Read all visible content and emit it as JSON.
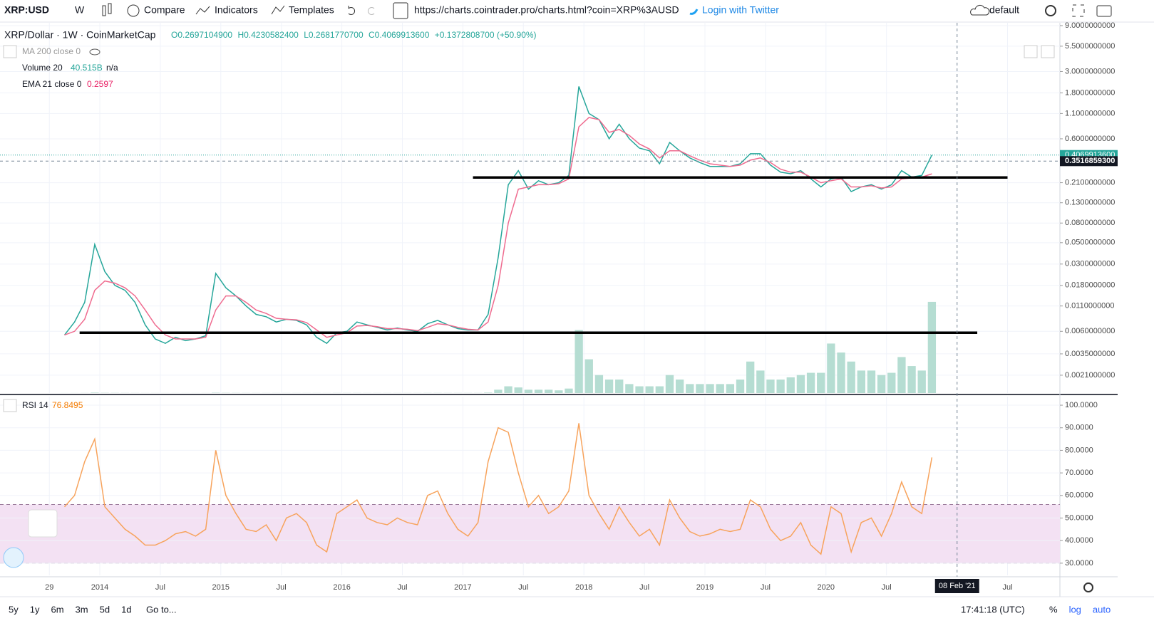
{
  "toolbar": {
    "symbol": "XRP:USD",
    "interval": "W",
    "compare": "Compare",
    "indicators": "Indicators",
    "templates": "Templates",
    "url": "https://charts.cointrader.pro/charts.html?coin=XRP%3AUSD",
    "login": "Login with Twitter",
    "layout": "default"
  },
  "legend": {
    "title": "XRP/Dollar · 1W · CoinMarketCap",
    "ohlc": [
      {
        "label": "O",
        "value": "0.2697104900"
      },
      {
        "label": "H",
        "value": "0.4230582400"
      },
      {
        "label": "L",
        "value": "0.2681770700"
      },
      {
        "label": "C",
        "value": "0.4069913600"
      }
    ],
    "change": "+0.1372808700 (+50.90%)"
  },
  "indicators": [
    {
      "name": "MA 200 close 0",
      "values": []
    },
    {
      "name": "Volume 20",
      "values": [
        "40.515B",
        "n/a"
      ]
    },
    {
      "name": "EMA 21 close 0",
      "values": [
        "0.2597"
      ]
    }
  ],
  "chart_data": [
    {
      "type": "line",
      "log": true,
      "grid": true,
      "ylim": [
        0.00137,
        9.63
      ],
      "yticks": [
        {
          "value": 9,
          "label": "9.0000000000"
        },
        {
          "value": 5.5,
          "label": "5.5000000000"
        },
        {
          "value": 3,
          "label": "3.0000000000"
        },
        {
          "value": 1.8,
          "label": "1.8000000000"
        },
        {
          "value": 1.1,
          "label": "1.1000000000"
        },
        {
          "value": 0.6,
          "label": "0.6000000000"
        },
        {
          "value": 0.21,
          "label": "0.2100000000"
        },
        {
          "value": 0.13,
          "label": "0.1300000000"
        },
        {
          "value": 0.08,
          "label": "0.0800000000"
        },
        {
          "value": 0.05,
          "label": "0.0500000000"
        },
        {
          "value": 0.03,
          "label": "0.0300000000"
        },
        {
          "value": 0.018,
          "label": "0.0180000000"
        },
        {
          "value": 0.011,
          "label": "0.0110000000"
        },
        {
          "value": 0.006,
          "label": "0.0060000000"
        },
        {
          "value": 0.0035,
          "label": "0.0035000000"
        },
        {
          "value": 0.0021,
          "label": "0.0021000000"
        }
      ],
      "y2lim": [
        0,
        164.5
      ],
      "xticks": [
        {
          "value": "2013-08",
          "label": "29"
        },
        {
          "value": "2014-01",
          "label": "2014"
        },
        {
          "value": "2014-07",
          "label": "Jul"
        },
        {
          "value": "2015-01",
          "label": "2015"
        },
        {
          "value": "2015-07",
          "label": "Jul"
        },
        {
          "value": "2016-01",
          "label": "2016"
        },
        {
          "value": "2016-07",
          "label": "Jul"
        },
        {
          "value": "2017-01",
          "label": "2017"
        },
        {
          "value": "2017-07",
          "label": "Jul"
        },
        {
          "value": "2018-01",
          "label": "2018"
        },
        {
          "value": "2018-07",
          "label": "Jul"
        },
        {
          "value": "2019-01",
          "label": "2019"
        },
        {
          "value": "2019-07",
          "label": "Jul"
        },
        {
          "value": "2020-01",
          "label": "2020"
        },
        {
          "value": "2020-07",
          "label": "Jul"
        },
        {
          "value": "2021-07",
          "label": "Jul"
        }
      ],
      "x": [
        "2013-09",
        "2013-10",
        "2013-11",
        "2013-12",
        "2014-01",
        "2014-02",
        "2014-03",
        "2014-04",
        "2014-05",
        "2014-06",
        "2014-07",
        "2014-08",
        "2014-09",
        "2014-10",
        "2014-11",
        "2014-12",
        "2015-01",
        "2015-02",
        "2015-03",
        "2015-04",
        "2015-05",
        "2015-06",
        "2015-07",
        "2015-08",
        "2015-09",
        "2015-10",
        "2015-11",
        "2015-12",
        "2016-01",
        "2016-02",
        "2016-03",
        "2016-04",
        "2016-05",
        "2016-06",
        "2016-07",
        "2016-08",
        "2016-09",
        "2016-10",
        "2016-11",
        "2016-12",
        "2017-01",
        "2017-02",
        "2017-03",
        "2017-04",
        "2017-05",
        "2017-06",
        "2017-07",
        "2017-08",
        "2017-09",
        "2017-10",
        "2017-11",
        "2017-12",
        "2018-01",
        "2018-02",
        "2018-03",
        "2018-04",
        "2018-05",
        "2018-06",
        "2018-07",
        "2018-08",
        "2018-09",
        "2018-10",
        "2018-11",
        "2018-12",
        "2019-01",
        "2019-02",
        "2019-03",
        "2019-04",
        "2019-05",
        "2019-06",
        "2019-07",
        "2019-08",
        "2019-09",
        "2019-10",
        "2019-11",
        "2019-12",
        "2020-01",
        "2020-02",
        "2020-03",
        "2020-04",
        "2020-05",
        "2020-06",
        "2020-07",
        "2020-08",
        "2020-09",
        "2020-10",
        "2020-11"
      ],
      "series": [
        {
          "name": "XRP/Dollar",
          "color": "#26a69a",
          "values": [
            0.0055,
            0.0075,
            0.012,
            0.048,
            0.025,
            0.018,
            0.016,
            0.012,
            0.007,
            0.005,
            0.0045,
            0.0052,
            0.0048,
            0.005,
            0.0054,
            0.024,
            0.017,
            0.014,
            0.011,
            0.009,
            0.0085,
            0.0075,
            0.008,
            0.0078,
            0.007,
            0.0052,
            0.0045,
            0.0058,
            0.006,
            0.0075,
            0.007,
            0.0066,
            0.0062,
            0.0065,
            0.0062,
            0.006,
            0.0072,
            0.0078,
            0.007,
            0.0064,
            0.0062,
            0.0062,
            0.009,
            0.035,
            0.2,
            0.28,
            0.18,
            0.22,
            0.2,
            0.21,
            0.25,
            2.1,
            1.1,
            0.95,
            0.6,
            0.85,
            0.6,
            0.48,
            0.45,
            0.33,
            0.55,
            0.45,
            0.38,
            0.34,
            0.31,
            0.31,
            0.31,
            0.33,
            0.42,
            0.42,
            0.32,
            0.27,
            0.26,
            0.28,
            0.23,
            0.19,
            0.23,
            0.24,
            0.17,
            0.19,
            0.2,
            0.18,
            0.2,
            0.28,
            0.24,
            0.25,
            0.407
          ]
        },
        {
          "name": "EMA 21 close 0",
          "color": "#ef6b8f",
          "values": [
            0.0055,
            0.006,
            0.008,
            0.016,
            0.02,
            0.019,
            0.017,
            0.014,
            0.01,
            0.007,
            0.0055,
            0.005,
            0.005,
            0.005,
            0.0052,
            0.01,
            0.014,
            0.014,
            0.012,
            0.01,
            0.0092,
            0.0082,
            0.008,
            0.0079,
            0.0074,
            0.0062,
            0.0052,
            0.0055,
            0.0058,
            0.0068,
            0.0069,
            0.0067,
            0.0064,
            0.0064,
            0.0063,
            0.0061,
            0.0066,
            0.0072,
            0.007,
            0.0066,
            0.0063,
            0.0062,
            0.0075,
            0.018,
            0.08,
            0.18,
            0.19,
            0.2,
            0.2,
            0.205,
            0.23,
            0.8,
            1.0,
            0.95,
            0.7,
            0.75,
            0.65,
            0.53,
            0.47,
            0.38,
            0.45,
            0.45,
            0.4,
            0.36,
            0.33,
            0.32,
            0.31,
            0.32,
            0.36,
            0.38,
            0.34,
            0.29,
            0.27,
            0.27,
            0.24,
            0.21,
            0.22,
            0.23,
            0.19,
            0.19,
            0.195,
            0.185,
            0.19,
            0.23,
            0.235,
            0.24,
            0.2597
          ]
        },
        {
          "name": "Volume 20",
          "color": "#b5ddd2",
          "axis": "y2",
          "values": [
            0.02,
            0.03,
            0.05,
            0.2,
            0.1,
            0.08,
            0.06,
            0.05,
            0.04,
            0.04,
            0.03,
            0.03,
            0.03,
            0.03,
            0.04,
            0.15,
            0.1,
            0.08,
            0.06,
            0.05,
            0.05,
            0.05,
            0.05,
            0.05,
            0.05,
            0.05,
            0.04,
            0.06,
            0.06,
            0.06,
            0.05,
            0.05,
            0.05,
            0.05,
            0.05,
            0.05,
            0.07,
            0.07,
            0.06,
            0.06,
            0.06,
            0.06,
            0.2,
            1.5,
            3,
            2.5,
            1.5,
            1.5,
            1.5,
            1.2,
            2,
            28,
            15,
            8,
            6,
            6,
            4,
            3,
            3,
            3,
            8,
            6,
            4,
            4,
            4,
            4,
            4,
            6,
            14,
            10,
            6,
            6,
            7,
            8,
            9,
            9,
            22,
            18,
            14,
            10,
            10,
            8,
            9,
            16,
            12,
            10,
            40.515
          ]
        }
      ],
      "levels": [
        {
          "value": 0.238,
          "from": "2017-02",
          "to": "2021-07",
          "color": "#000000"
        },
        {
          "value": 0.0058,
          "from": "2013-11",
          "to": "2021-04",
          "color": "#000000"
        }
      ],
      "last_price": {
        "value": 0.40699136,
        "label": "0.4069913600",
        "color": "#26a69a"
      },
      "crosshair": {
        "value": 0.35168593,
        "label": "0.3516859300",
        "x": "2021-02",
        "date": "08 Feb '21"
      }
    },
    {
      "type": "line",
      "grid": true,
      "title": "RSI 14",
      "value_label": "76.8495",
      "ylim": [
        24.6,
        103.8
      ],
      "yticks": [
        {
          "value": 100,
          "label": "100.0000"
        },
        {
          "value": 90,
          "label": "90.0000"
        },
        {
          "value": 80,
          "label": "80.0000"
        },
        {
          "value": 70,
          "label": "70.0000"
        },
        {
          "value": 60,
          "label": "60.0000"
        },
        {
          "value": 50,
          "label": "50.0000"
        },
        {
          "value": 40,
          "label": "40.0000"
        },
        {
          "value": 30,
          "label": "30.0000"
        }
      ],
      "band": [
        30,
        56
      ],
      "band_color": "#f3e1f3",
      "x": [
        "2013-09",
        "2013-10",
        "2013-11",
        "2013-12",
        "2014-01",
        "2014-02",
        "2014-03",
        "2014-04",
        "2014-05",
        "2014-06",
        "2014-07",
        "2014-08",
        "2014-09",
        "2014-10",
        "2014-11",
        "2014-12",
        "2015-01",
        "2015-02",
        "2015-03",
        "2015-04",
        "2015-05",
        "2015-06",
        "2015-07",
        "2015-08",
        "2015-09",
        "2015-10",
        "2015-11",
        "2015-12",
        "2016-01",
        "2016-02",
        "2016-03",
        "2016-04",
        "2016-05",
        "2016-06",
        "2016-07",
        "2016-08",
        "2016-09",
        "2016-10",
        "2016-11",
        "2016-12",
        "2017-01",
        "2017-02",
        "2017-03",
        "2017-04",
        "2017-05",
        "2017-06",
        "2017-07",
        "2017-08",
        "2017-09",
        "2017-10",
        "2017-11",
        "2017-12",
        "2018-01",
        "2018-02",
        "2018-03",
        "2018-04",
        "2018-05",
        "2018-06",
        "2018-07",
        "2018-08",
        "2018-09",
        "2018-10",
        "2018-11",
        "2018-12",
        "2019-01",
        "2019-02",
        "2019-03",
        "2019-04",
        "2019-05",
        "2019-06",
        "2019-07",
        "2019-08",
        "2019-09",
        "2019-10",
        "2019-11",
        "2019-12",
        "2020-01",
        "2020-02",
        "2020-03",
        "2020-04",
        "2020-05",
        "2020-06",
        "2020-07",
        "2020-08",
        "2020-09",
        "2020-10",
        "2020-11"
      ],
      "series": [
        {
          "name": "RSI 14",
          "color": "#f7a35c",
          "values": [
            55,
            60,
            75,
            85,
            55,
            50,
            45,
            42,
            38,
            38,
            40,
            43,
            44,
            42,
            45,
            80,
            60,
            52,
            45,
            44,
            47,
            40,
            50,
            52,
            48,
            38,
            35,
            52,
            55,
            58,
            50,
            48,
            47,
            50,
            48,
            47,
            60,
            62,
            52,
            45,
            42,
            48,
            75,
            90,
            88,
            70,
            55,
            60,
            52,
            55,
            62,
            92,
            60,
            52,
            45,
            55,
            48,
            42,
            45,
            38,
            58,
            50,
            44,
            42,
            43,
            45,
            44,
            45,
            58,
            55,
            45,
            40,
            42,
            48,
            38,
            34,
            55,
            52,
            35,
            48,
            50,
            42,
            52,
            66,
            55,
            52,
            76.8495
          ]
        }
      ]
    }
  ],
  "bottom": {
    "ranges": [
      "5y",
      "1y",
      "6m",
      "3m",
      "5d",
      "1d"
    ],
    "goto": "Go to...",
    "clock": "17:41:18 (UTC)",
    "scale_buttons": [
      "%",
      "log",
      "auto"
    ]
  }
}
